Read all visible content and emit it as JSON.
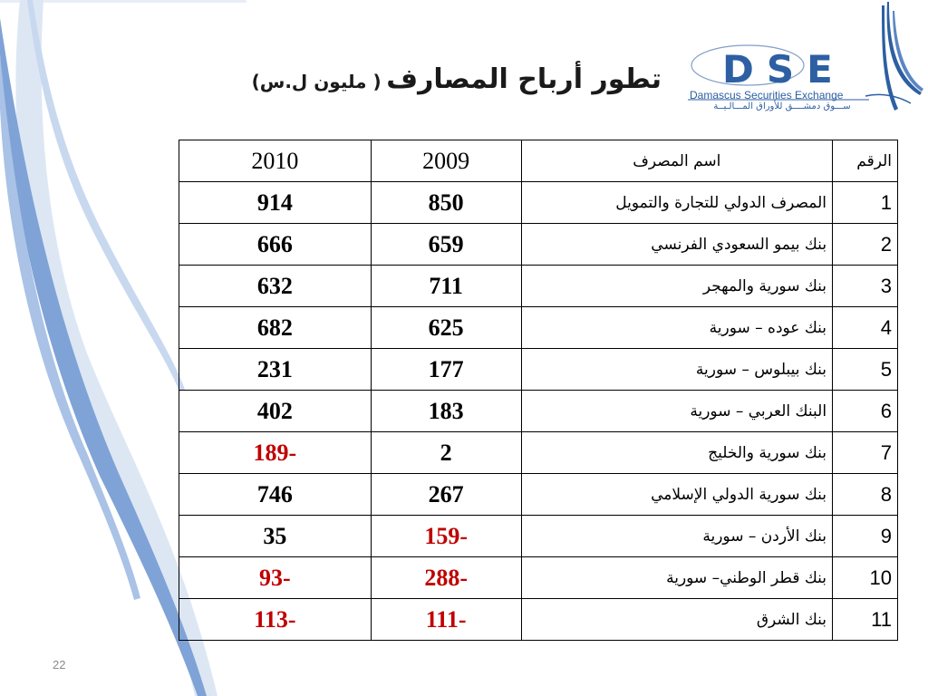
{
  "title": {
    "main": "تطور أرباح المصارف",
    "unit": "( مليون ل.س)"
  },
  "logo": {
    "letters": "DSE",
    "english": "Damascus Securities Exchange",
    "arabic": "ســـوق دمشــــق للأوراق المـــالـيــة"
  },
  "table": {
    "headers": [
      "الرقم",
      "اسم المصرف",
      "2009",
      "2010"
    ],
    "rows": [
      {
        "no": "1",
        "name": "المصرف الدولي للتجارة والتمويل",
        "y2009": "850",
        "y2010": "914",
        "neg2009": false,
        "neg2010": false
      },
      {
        "no": "2",
        "name": "بنك بيمو السعودي الفرنسي",
        "y2009": "659",
        "y2010": "666",
        "neg2009": false,
        "neg2010": false
      },
      {
        "no": "3",
        "name": "بنك سورية والمهجر",
        "y2009": "711",
        "y2010": "632",
        "neg2009": false,
        "neg2010": false
      },
      {
        "no": "4",
        "name": "بنك عوده – سورية",
        "y2009": "625",
        "y2010": "682",
        "neg2009": false,
        "neg2010": false
      },
      {
        "no": "5",
        "name": "بنك بيبلوس – سورية",
        "y2009": "177",
        "y2010": "231",
        "neg2009": false,
        "neg2010": false
      },
      {
        "no": "6",
        "name": "البنك العربي – سورية",
        "y2009": "183",
        "y2010": "402",
        "neg2009": false,
        "neg2010": false
      },
      {
        "no": "7",
        "name": "بنك سورية والخليج",
        "y2009": "2",
        "y2010": "-189",
        "neg2009": false,
        "neg2010": true
      },
      {
        "no": "8",
        "name": "بنك سورية الدولي الإسلامي",
        "y2009": "267",
        "y2010": "746",
        "neg2009": false,
        "neg2010": false
      },
      {
        "no": "9",
        "name": "بنك الأردن – سورية",
        "y2009": "-159",
        "y2010": "35",
        "neg2009": true,
        "neg2010": false
      },
      {
        "no": "10",
        "name": "بنك قطر الوطني– سورية",
        "y2009": "-288",
        "y2010": "-93",
        "neg2009": true,
        "neg2010": true
      },
      {
        "no": "11",
        "name": "بنك الشرق",
        "y2009": "-111",
        "y2010": "-113",
        "neg2009": true,
        "neg2010": true
      }
    ]
  },
  "colors": {
    "negative": "#c00000",
    "brand": "#2d5fa3"
  },
  "page_number": "22"
}
